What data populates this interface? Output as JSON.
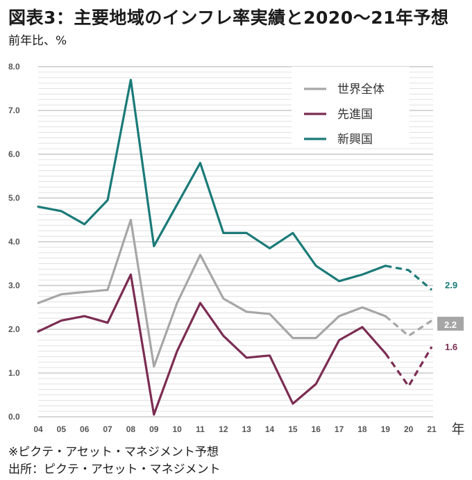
{
  "title": "図表3：主要地域のインフレ率実績と2020～21年予想",
  "subtitle": "前年比、%",
  "footnotes": {
    "forecast_note": "※ピクテ・アセット・マネジメント予想",
    "source": "出所：ピクテ・アセット・マネジメント"
  },
  "chart_data": {
    "type": "line",
    "title": "図表3：主要地域のインフレ率実績と2020～21年予想",
    "subtitle": "前年比、%",
    "xlabel": "年",
    "ylabel": "",
    "categories": [
      "04",
      "05",
      "06",
      "07",
      "08",
      "09",
      "10",
      "11",
      "12",
      "13",
      "14",
      "15",
      "16",
      "17",
      "18",
      "19",
      "20",
      "21"
    ],
    "ylim": [
      0,
      8
    ],
    "yticks": [
      "0.0",
      "1.0",
      "2.0",
      "3.0",
      "4.0",
      "5.0",
      "6.0",
      "7.0",
      "8.0"
    ],
    "grid": true,
    "legend_position": "top-right",
    "forecast_from": "19",
    "series": [
      {
        "name": "世界全体",
        "color": "#a6a6a6",
        "values": [
          2.6,
          2.8,
          2.85,
          2.9,
          4.5,
          1.15,
          2.6,
          3.7,
          2.7,
          2.4,
          2.35,
          1.8,
          1.8,
          2.3,
          2.5,
          2.3,
          1.85,
          2.2
        ],
        "end_label": "2.2"
      },
      {
        "name": "先進国",
        "color": "#7b2c52",
        "values": [
          1.95,
          2.2,
          2.3,
          2.15,
          3.25,
          0.05,
          1.5,
          2.6,
          1.85,
          1.35,
          1.4,
          0.3,
          0.75,
          1.75,
          2.05,
          1.45,
          0.7,
          1.6
        ],
        "end_label": "1.6"
      },
      {
        "name": "新興国",
        "color": "#1a7a78",
        "values": [
          4.8,
          4.7,
          4.4,
          4.95,
          7.7,
          3.9,
          4.85,
          5.8,
          4.2,
          4.2,
          3.85,
          4.2,
          3.45,
          3.1,
          3.25,
          3.45,
          3.35,
          2.9
        ],
        "end_label": "2.9"
      }
    ]
  }
}
